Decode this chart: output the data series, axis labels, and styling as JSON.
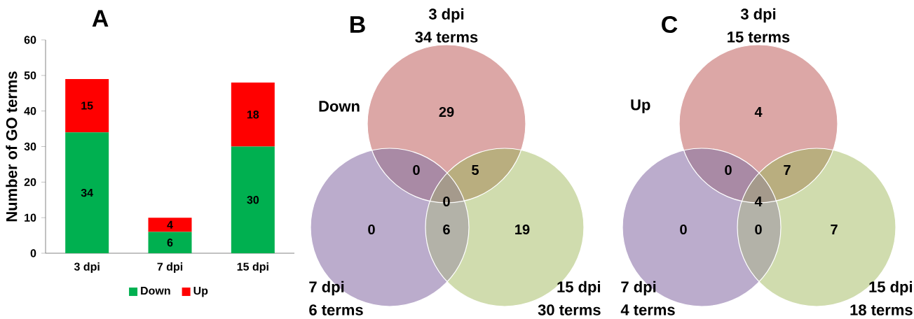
{
  "chart_data": [
    {
      "type": "bar",
      "title": "A",
      "ylabel": "Number of GO terms",
      "categories": [
        "3 dpi",
        "7 dpi",
        "15 dpi"
      ],
      "stacked": true,
      "series": [
        {
          "name": "Down",
          "color": "#00b050",
          "values": [
            34,
            6,
            30
          ]
        },
        {
          "name": "Up",
          "color": "#ff0000",
          "values": [
            15,
            4,
            18
          ]
        }
      ],
      "ylim": [
        0,
        60
      ],
      "yticks": [
        0,
        10,
        20,
        30,
        40,
        50,
        60
      ],
      "data_labels": true,
      "legend": "bottom",
      "grid": false
    },
    {
      "type": "other",
      "title": "B",
      "subtitle": "Down",
      "categories": [
        null,
        null,
        null,
        null,
        null,
        null,
        null
      ],
      "values": [
        29,
        0,
        5,
        0,
        0,
        6,
        19
      ],
      "data_labels": true,
      "colors": [
        "#dca7a6",
        "#a98aa5",
        "#b9ae7f",
        "#a59a8c",
        "#bbaccc",
        "#b3b2a8",
        "#d0dcae"
      ],
      "annotations": [
        "3 dpi",
        "34 terms",
        "7 dpi",
        "6 terms",
        "15 dpi",
        "30 terms"
      ]
    },
    {
      "type": "other",
      "title": "C",
      "subtitle": "Up",
      "categories": [
        null,
        null,
        null,
        null,
        null,
        null,
        null
      ],
      "values": [
        4,
        0,
        7,
        4,
        0,
        0,
        7
      ],
      "data_labels": true,
      "colors": [
        "#dca7a6",
        "#a98aa5",
        "#b9ae7f",
        "#a59a8c",
        "#bbaccc",
        "#b3b2a8",
        "#d0dcae"
      ],
      "annotations": [
        "3 dpi",
        "15 terms",
        "7 dpi",
        "4 terms",
        "15 dpi",
        "18 terms"
      ]
    }
  ]
}
